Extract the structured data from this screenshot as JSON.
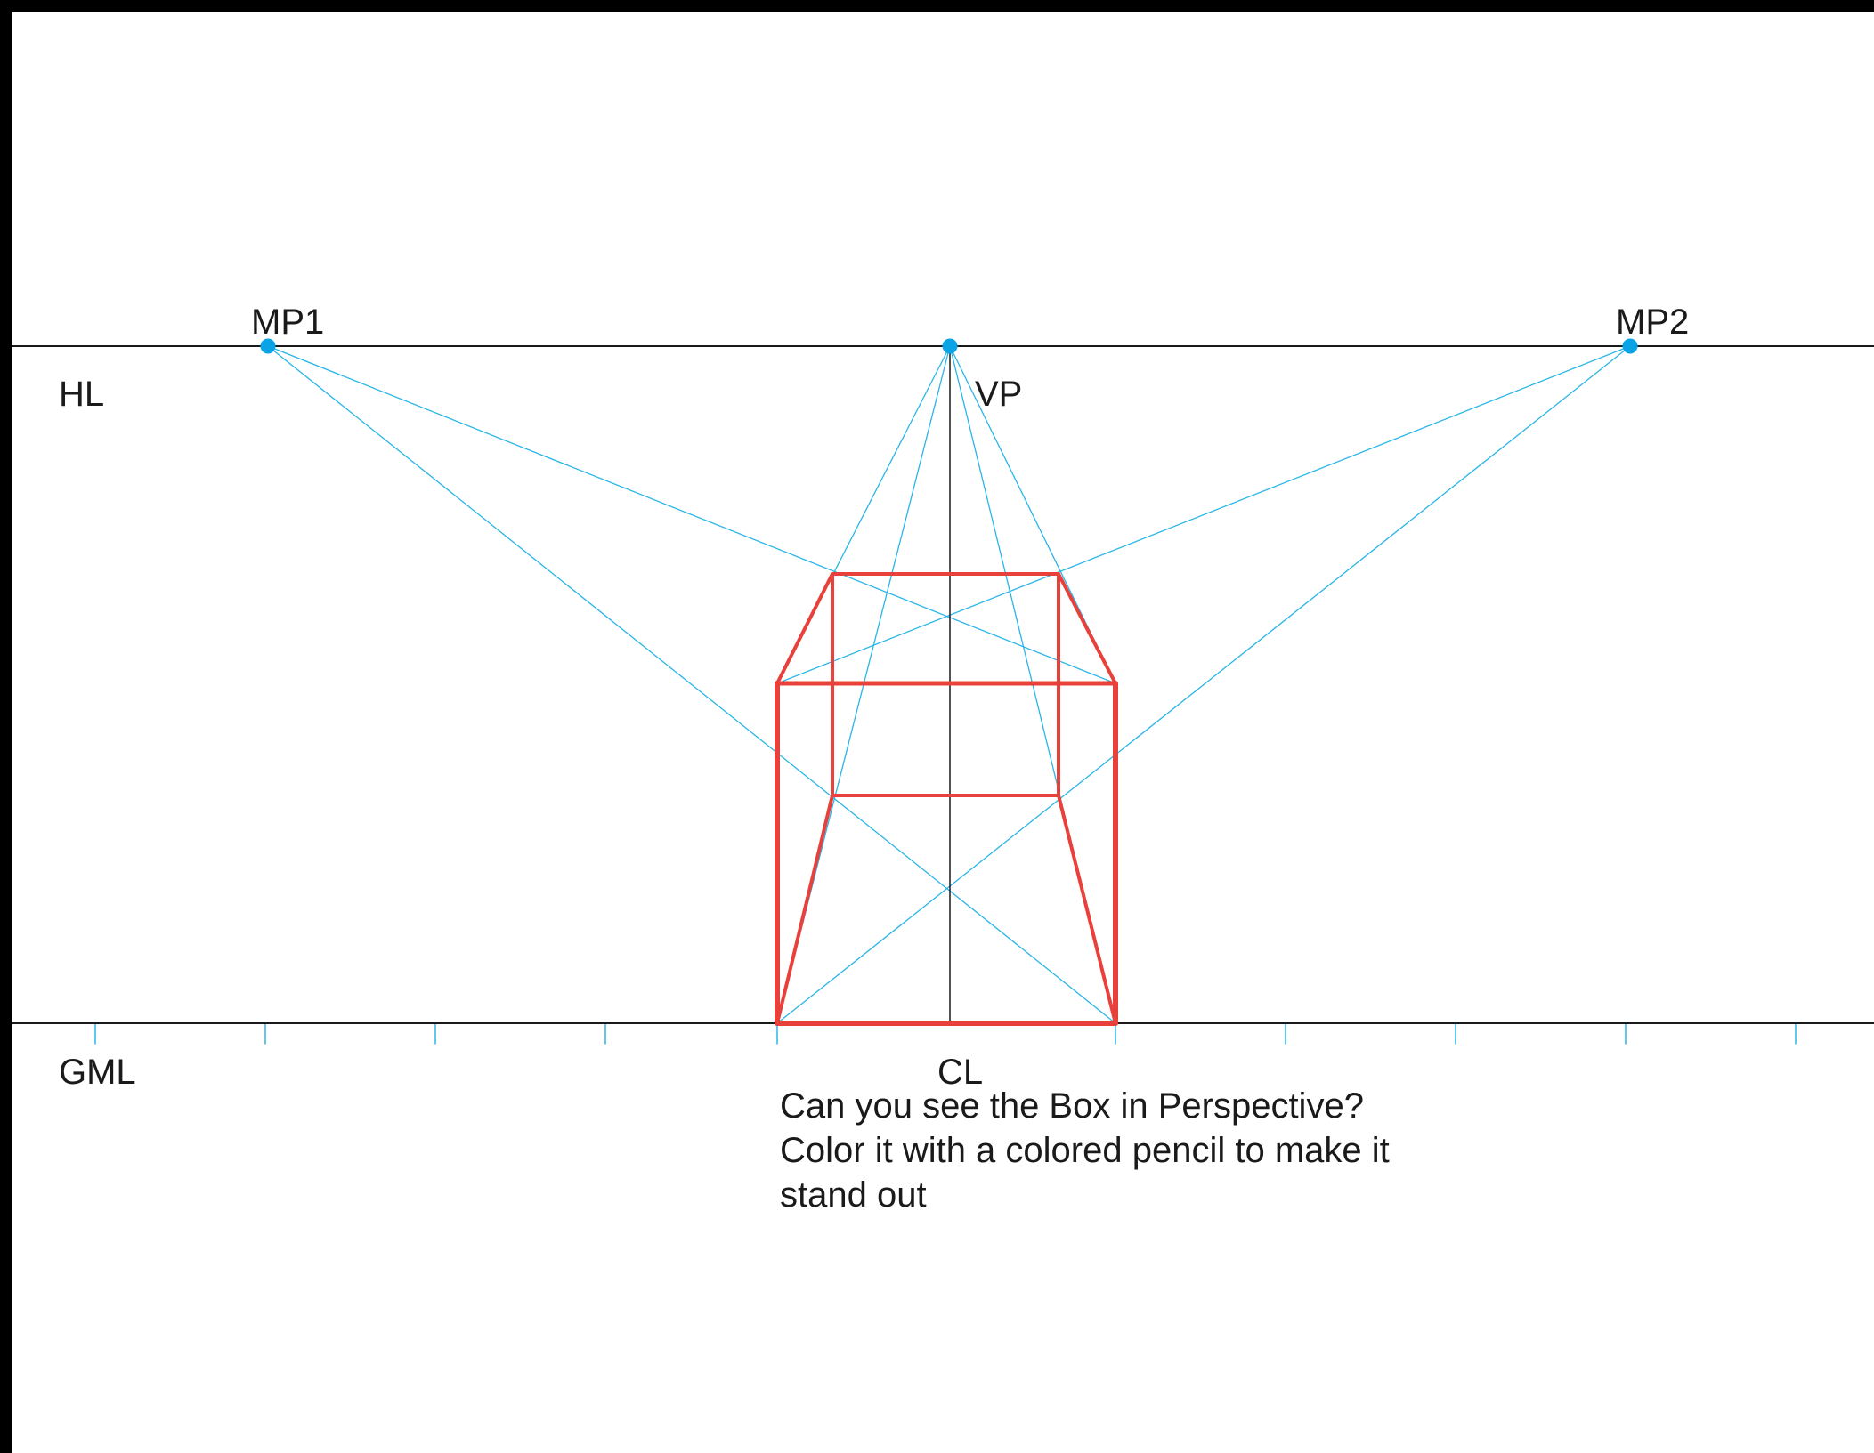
{
  "labels": {
    "horizon_line": "HL",
    "measuring_point_left": "MP1",
    "measuring_point_right": "MP2",
    "vanishing_point": "VP",
    "ground_measuring_line": "GML",
    "center_line": "CL"
  },
  "caption": {
    "line1": "Can you see the Box in Perspective?",
    "line2": "Color it with a colored pencil to make it",
    "line3": "stand out"
  },
  "colors": {
    "frame": "#000000",
    "paper": "#ffffff",
    "construction_lines": "#29b5e8",
    "box": "#e8403a",
    "reference_lines": "#1a1a1a",
    "points": "#0aa3e6"
  }
}
